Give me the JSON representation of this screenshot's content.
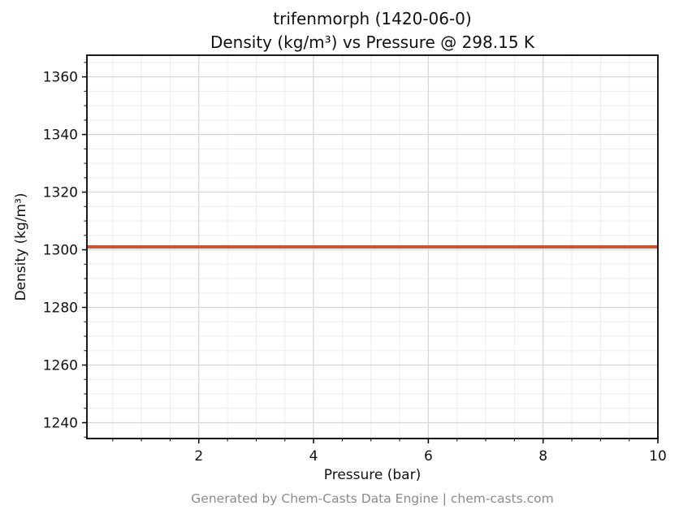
{
  "figure": {
    "title_line1": "trifenmorph (1420-06-0)",
    "title_line2": "Density (kg/m³) vs Pressure @ 298.15 K",
    "footer": "Generated by Chem-Casts Data Engine | chem-casts.com"
  },
  "chart_data": {
    "type": "line",
    "title": "trifenmorph (1420-06-0)\nDensity (kg/m³) vs Pressure @ 298.15 K",
    "xlabel": "Pressure (bar)",
    "ylabel": "Density (kg/m³)",
    "xlim": [
      0.05,
      10
    ],
    "ylim": [
      1234.5,
      1367.5
    ],
    "xticks": [
      2,
      4,
      6,
      8,
      10
    ],
    "yticks": [
      1240,
      1260,
      1280,
      1300,
      1320,
      1340,
      1360
    ],
    "x_minor_step": 0.5,
    "y_minor_step": 5,
    "grid": true,
    "legend": false,
    "series": [
      {
        "name": "Density",
        "x": [
          0.05,
          10
        ],
        "y": [
          1301,
          1301
        ],
        "color": "#cc5333",
        "linewidth": 4
      }
    ],
    "colors": {
      "line": "#cc5333",
      "grid_major": "#d7d7d7",
      "grid_minor": "#eeeeee",
      "axis": "#000000",
      "tick_label": "#111111",
      "footer_text": "#8b8b8b"
    }
  }
}
